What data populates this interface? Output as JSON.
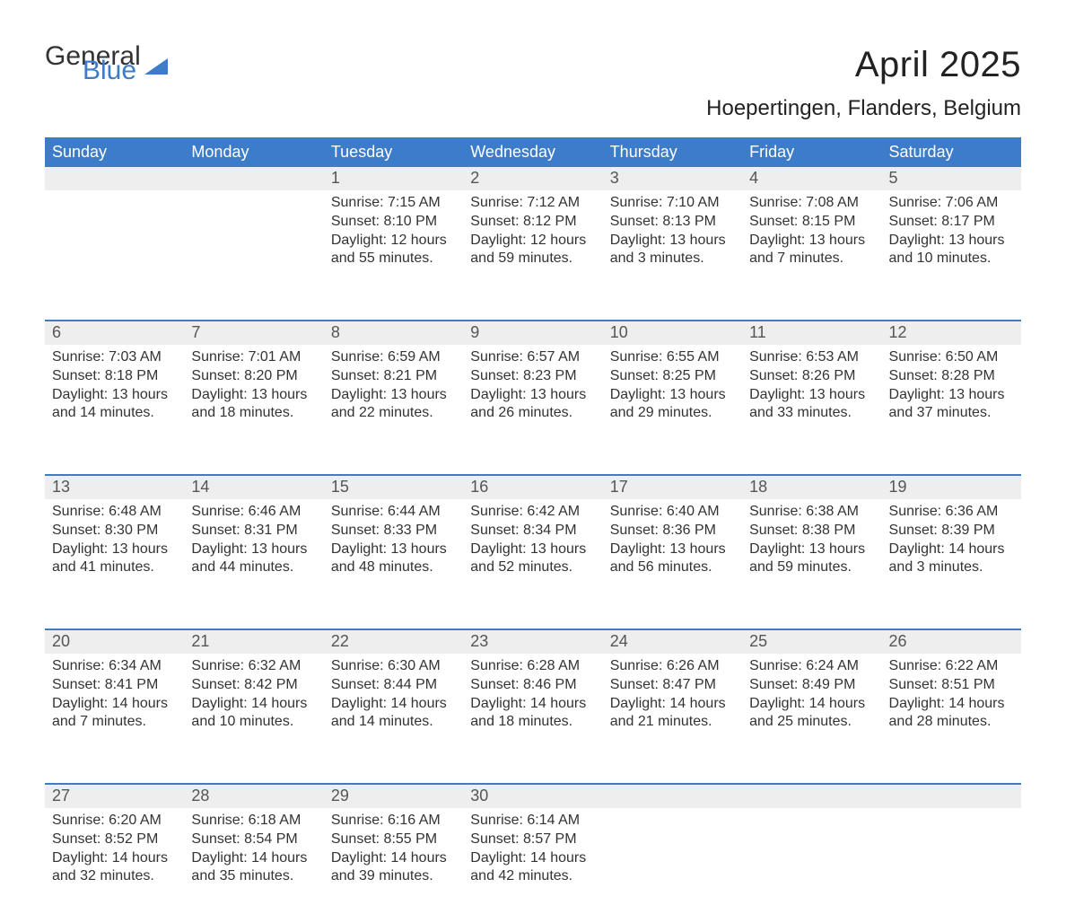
{
  "logo": {
    "part1": "General",
    "part2": "Blue"
  },
  "title": "April 2025",
  "location": "Hoepertingen, Flanders, Belgium",
  "colors": {
    "header_bg": "#3d7cc9",
    "header_text": "#ffffff",
    "daynum_bg": "#eeeeee",
    "body_text": "#333333",
    "page_bg": "#ffffff"
  },
  "typography": {
    "title_fontsize": 40,
    "location_fontsize": 24,
    "header_fontsize": 18,
    "daynum_fontsize": 18,
    "body_fontsize": 16
  },
  "weekday_labels": [
    "Sunday",
    "Monday",
    "Tuesday",
    "Wednesday",
    "Thursday",
    "Friday",
    "Saturday"
  ],
  "labels": {
    "sunrise": "Sunrise: ",
    "sunset": "Sunset: ",
    "daylight": "Daylight: "
  },
  "weeks": [
    [
      null,
      null,
      {
        "day": "1",
        "sunrise": "7:15 AM",
        "sunset": "8:10 PM",
        "daylight": "12 hours and 55 minutes."
      },
      {
        "day": "2",
        "sunrise": "7:12 AM",
        "sunset": "8:12 PM",
        "daylight": "12 hours and 59 minutes."
      },
      {
        "day": "3",
        "sunrise": "7:10 AM",
        "sunset": "8:13 PM",
        "daylight": "13 hours and 3 minutes."
      },
      {
        "day": "4",
        "sunrise": "7:08 AM",
        "sunset": "8:15 PM",
        "daylight": "13 hours and 7 minutes."
      },
      {
        "day": "5",
        "sunrise": "7:06 AM",
        "sunset": "8:17 PM",
        "daylight": "13 hours and 10 minutes."
      }
    ],
    [
      {
        "day": "6",
        "sunrise": "7:03 AM",
        "sunset": "8:18 PM",
        "daylight": "13 hours and 14 minutes."
      },
      {
        "day": "7",
        "sunrise": "7:01 AM",
        "sunset": "8:20 PM",
        "daylight": "13 hours and 18 minutes."
      },
      {
        "day": "8",
        "sunrise": "6:59 AM",
        "sunset": "8:21 PM",
        "daylight": "13 hours and 22 minutes."
      },
      {
        "day": "9",
        "sunrise": "6:57 AM",
        "sunset": "8:23 PM",
        "daylight": "13 hours and 26 minutes."
      },
      {
        "day": "10",
        "sunrise": "6:55 AM",
        "sunset": "8:25 PM",
        "daylight": "13 hours and 29 minutes."
      },
      {
        "day": "11",
        "sunrise": "6:53 AM",
        "sunset": "8:26 PM",
        "daylight": "13 hours and 33 minutes."
      },
      {
        "day": "12",
        "sunrise": "6:50 AM",
        "sunset": "8:28 PM",
        "daylight": "13 hours and 37 minutes."
      }
    ],
    [
      {
        "day": "13",
        "sunrise": "6:48 AM",
        "sunset": "8:30 PM",
        "daylight": "13 hours and 41 minutes."
      },
      {
        "day": "14",
        "sunrise": "6:46 AM",
        "sunset": "8:31 PM",
        "daylight": "13 hours and 44 minutes."
      },
      {
        "day": "15",
        "sunrise": "6:44 AM",
        "sunset": "8:33 PM",
        "daylight": "13 hours and 48 minutes."
      },
      {
        "day": "16",
        "sunrise": "6:42 AM",
        "sunset": "8:34 PM",
        "daylight": "13 hours and 52 minutes."
      },
      {
        "day": "17",
        "sunrise": "6:40 AM",
        "sunset": "8:36 PM",
        "daylight": "13 hours and 56 minutes."
      },
      {
        "day": "18",
        "sunrise": "6:38 AM",
        "sunset": "8:38 PM",
        "daylight": "13 hours and 59 minutes."
      },
      {
        "day": "19",
        "sunrise": "6:36 AM",
        "sunset": "8:39 PM",
        "daylight": "14 hours and 3 minutes."
      }
    ],
    [
      {
        "day": "20",
        "sunrise": "6:34 AM",
        "sunset": "8:41 PM",
        "daylight": "14 hours and 7 minutes."
      },
      {
        "day": "21",
        "sunrise": "6:32 AM",
        "sunset": "8:42 PM",
        "daylight": "14 hours and 10 minutes."
      },
      {
        "day": "22",
        "sunrise": "6:30 AM",
        "sunset": "8:44 PM",
        "daylight": "14 hours and 14 minutes."
      },
      {
        "day": "23",
        "sunrise": "6:28 AM",
        "sunset": "8:46 PM",
        "daylight": "14 hours and 18 minutes."
      },
      {
        "day": "24",
        "sunrise": "6:26 AM",
        "sunset": "8:47 PM",
        "daylight": "14 hours and 21 minutes."
      },
      {
        "day": "25",
        "sunrise": "6:24 AM",
        "sunset": "8:49 PM",
        "daylight": "14 hours and 25 minutes."
      },
      {
        "day": "26",
        "sunrise": "6:22 AM",
        "sunset": "8:51 PM",
        "daylight": "14 hours and 28 minutes."
      }
    ],
    [
      {
        "day": "27",
        "sunrise": "6:20 AM",
        "sunset": "8:52 PM",
        "daylight": "14 hours and 32 minutes."
      },
      {
        "day": "28",
        "sunrise": "6:18 AM",
        "sunset": "8:54 PM",
        "daylight": "14 hours and 35 minutes."
      },
      {
        "day": "29",
        "sunrise": "6:16 AM",
        "sunset": "8:55 PM",
        "daylight": "14 hours and 39 minutes."
      },
      {
        "day": "30",
        "sunrise": "6:14 AM",
        "sunset": "8:57 PM",
        "daylight": "14 hours and 42 minutes."
      },
      null,
      null,
      null
    ]
  ]
}
